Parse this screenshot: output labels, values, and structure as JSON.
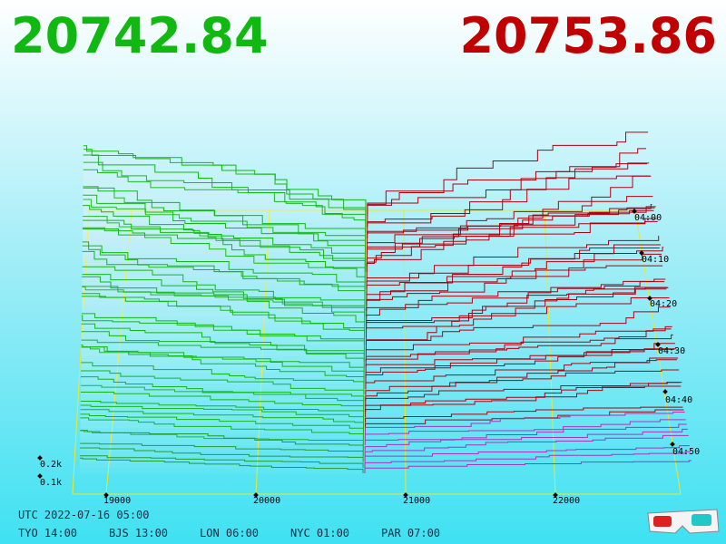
{
  "prices": {
    "bid": "20742.84",
    "ask": "20753.86"
  },
  "price_axis": [
    "19000",
    "20000",
    "21000",
    "22000"
  ],
  "volume_axis": [
    "0.2k",
    "0.1k"
  ],
  "time_axis": [
    "04:00",
    "04:10",
    "04:20",
    "04:30",
    "04:40",
    "04:50"
  ],
  "footer": {
    "utc": "UTC 2022-07-16 05:00",
    "zones": [
      "TYO 14:00",
      "BJS 13:00",
      "LON 06:00",
      "NYC 01:00",
      "PAR 07:00"
    ]
  }
}
